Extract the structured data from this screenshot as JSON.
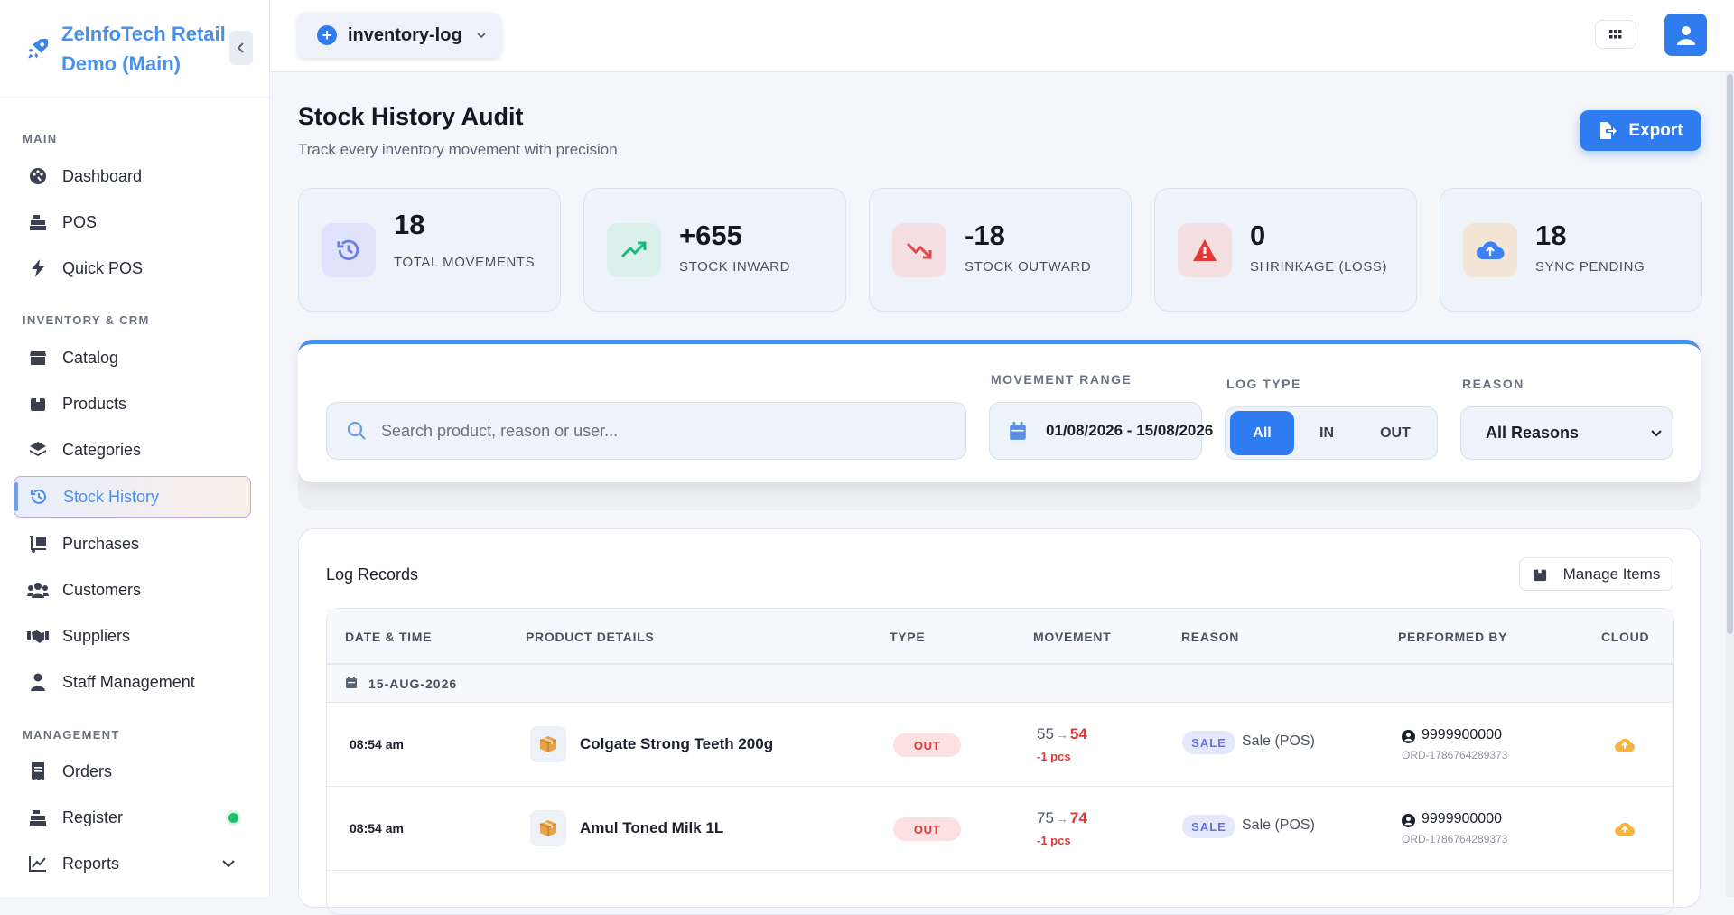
{
  "brand": {
    "name": "ZeInfoTech Retail Demo (Main)"
  },
  "sidebar": {
    "sections": [
      {
        "title": "MAIN"
      },
      {
        "title": "INVENTORY & CRM"
      },
      {
        "title": "MANAGEMENT"
      }
    ],
    "items": [
      {
        "label": "Dashboard",
        "icon": "palette-icon"
      },
      {
        "label": "POS",
        "icon": "cash-register-icon"
      },
      {
        "label": "Quick POS",
        "icon": "bolt-icon"
      },
      {
        "label": "Catalog",
        "icon": "store-icon"
      },
      {
        "label": "Products",
        "icon": "box-icon"
      },
      {
        "label": "Categories",
        "icon": "layers-icon"
      },
      {
        "label": "Stock History",
        "icon": "history-icon",
        "active": true
      },
      {
        "label": "Purchases",
        "icon": "dolly-icon"
      },
      {
        "label": "Customers",
        "icon": "users-icon"
      },
      {
        "label": "Suppliers",
        "icon": "handshake-icon"
      },
      {
        "label": "Staff Management",
        "icon": "user-tie-icon"
      },
      {
        "label": "Orders",
        "icon": "receipt-icon"
      },
      {
        "label": "Register",
        "icon": "cash-register-icon",
        "status": "online"
      },
      {
        "label": "Reports",
        "icon": "chart-line-icon"
      }
    ]
  },
  "topbar": {
    "env": "inventory-log"
  },
  "page": {
    "title": "Stock History Audit",
    "subtitle": "Track every inventory movement with precision",
    "export_label": "Export"
  },
  "stats": [
    {
      "value": "18",
      "label": "TOTAL MOVEMENTS",
      "color": "#6b7fe0",
      "bg": "#dfe3fb"
    },
    {
      "value": "+655",
      "label": "STOCK INWARD",
      "color": "#1fb77a",
      "bg": "#d9f1ea"
    },
    {
      "value": "-18",
      "label": "STOCK OUTWARD",
      "color": "#e04848",
      "bg": "#f6dfe3"
    },
    {
      "value": "0",
      "label": "SHRINKAGE (LOSS)",
      "color": "#e53935",
      "bg": "#f6dfe3"
    },
    {
      "value": "18",
      "label": "SYNC PENDING",
      "color": "#3b82f6",
      "bg": "#f3e5d6"
    }
  ],
  "filters": {
    "search_placeholder": "Search product, reason or user...",
    "range_label": "MOVEMENT RANGE",
    "range_value": "01/08/2026 - 15/08/2026",
    "logtype_label": "LOG TYPE",
    "logtype_options": [
      "All",
      "IN",
      "OUT"
    ],
    "reason_label": "REASON",
    "reason_value": "All Reasons"
  },
  "log": {
    "title": "Log Records",
    "manage_label": "Manage Items",
    "columns": [
      "DATE & TIME",
      "PRODUCT DETAILS",
      "TYPE",
      "MOVEMENT",
      "REASON",
      "PERFORMED BY",
      "CLOUD"
    ],
    "group_date": "15-AUG-2026",
    "rows": [
      {
        "time": "08:54 am",
        "product": "Colgate Strong Teeth 200g",
        "type": "OUT",
        "from": "55",
        "to": "54",
        "delta": "-1 pcs",
        "reason_tag": "SALE",
        "reason": "Sale (POS)",
        "user": "9999900000",
        "order": "ORD-1786764289373"
      },
      {
        "time": "08:54 am",
        "product": "Amul Toned Milk 1L",
        "type": "OUT",
        "from": "75",
        "to": "74",
        "delta": "-1 pcs",
        "reason_tag": "SALE",
        "reason": "Sale (POS)",
        "user": "9999900000",
        "order": "ORD-1786764289373"
      }
    ]
  }
}
